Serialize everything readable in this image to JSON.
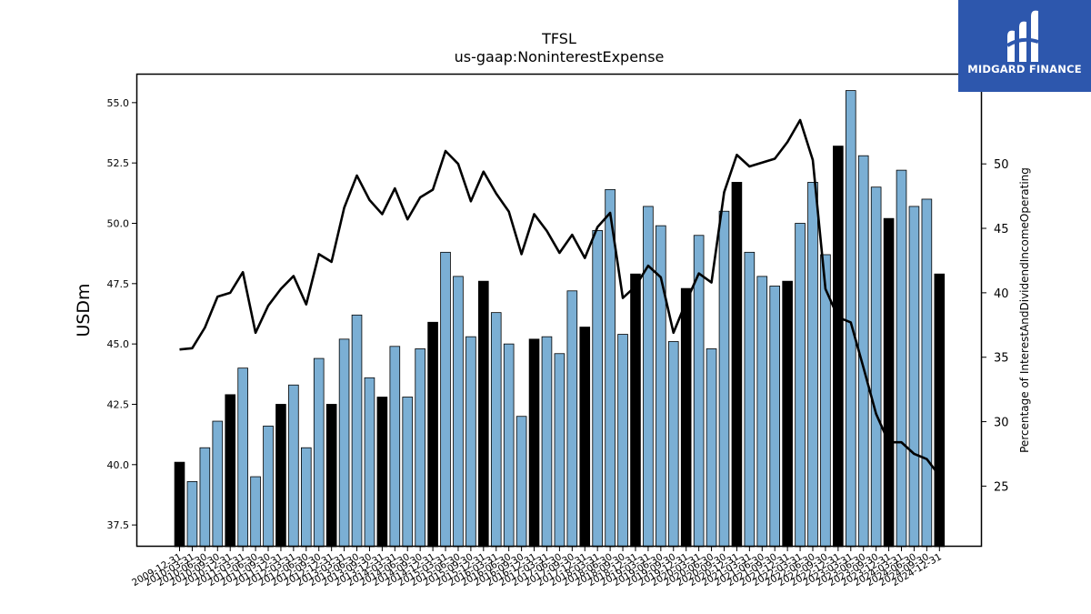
{
  "brand": {
    "name": "MIDGARD FINANCE",
    "color": "#2d57ad"
  },
  "chart_data": {
    "type": "bar",
    "title": "TFSL",
    "subtitle": "us-gaap:NoninterestExpense",
    "ylabel": "USDm",
    "y2label": "Percentage of InterestAndDividendIncomeOperating",
    "ylim": [
      36.6,
      56.2
    ],
    "y2lim": [
      20.3,
      57.0
    ],
    "yticks": [
      "37.5",
      "40.0",
      "42.5",
      "45.0",
      "47.5",
      "50.0",
      "52.5",
      "55.0"
    ],
    "y2ticks": [
      "25",
      "30",
      "35",
      "40",
      "45",
      "50"
    ],
    "grid": false,
    "colors": {
      "annual_bar": "#000000",
      "quarter_bar": "#7bafd4",
      "line": "#000000"
    },
    "categories": [
      "2009-12-31",
      "2010-03-31",
      "2010-06-30",
      "2010-09-30",
      "2010-12-31",
      "2011-03-31",
      "2011-06-30",
      "2011-09-30",
      "2011-12-31",
      "2012-03-31",
      "2012-06-30",
      "2012-09-30",
      "2012-12-31",
      "2013-03-31",
      "2013-06-30",
      "2013-09-30",
      "2013-12-31",
      "2014-03-31",
      "2014-06-30",
      "2014-09-30",
      "2014-12-31",
      "2015-03-31",
      "2015-06-30",
      "2015-09-30",
      "2015-12-31",
      "2016-03-31",
      "2016-06-30",
      "2016-09-30",
      "2016-12-31",
      "2017-03-31",
      "2017-06-30",
      "2017-09-30",
      "2017-12-31",
      "2018-03-31",
      "2018-06-30",
      "2018-09-30",
      "2018-12-31",
      "2019-03-31",
      "2019-06-30",
      "2019-09-30",
      "2019-12-31",
      "2020-03-31",
      "2020-06-30",
      "2020-09-30",
      "2020-12-31",
      "2021-03-31",
      "2021-06-30",
      "2021-09-30",
      "2021-12-31",
      "2022-03-31",
      "2022-06-30",
      "2022-09-30",
      "2022-12-31",
      "2023-03-31",
      "2023-06-30",
      "2023-09-30",
      "2023-12-31",
      "2024-03-31",
      "2024-06-30",
      "2024-09-30",
      "2024-12-31"
    ],
    "xticks_shown": [
      "2009-12-31",
      "2010-03-31",
      "2010-06-30",
      "2010-09-30",
      "2010-12-31",
      "2011-03-31",
      "2011-06-30",
      "2011-09-30",
      "2011-12-31",
      "2012-03-31",
      "2012-06-30",
      "2012-09-30",
      "2012-12-31",
      "2013-03-31",
      "2013-06-30",
      "2013-09-30",
      "2013-12-31",
      "2014-03-31",
      "2014-06-30",
      "2014-09-30",
      "2014-12-31",
      "2015-03-31",
      "2015-06-30",
      "2015-09-30",
      "2015-12-31",
      "2016-03-31",
      "2016-06-30",
      "2016-09-30",
      "2016-12-31",
      "2017-03-31",
      "2017-06-30",
      "2017-09-30",
      "2017-12-31",
      "2018-03-31",
      "2018-06-30",
      "2018-09-30",
      "2018-12-31",
      "2019-03-31",
      "2019-06-30",
      "2019-09-30",
      "2019-12-31",
      "2020-03-31",
      "2020-06-30",
      "2020-09-30",
      "2020-12-31",
      "2021-03-31",
      "2021-06-30",
      "2021-09-30",
      "2021-12-31",
      "2022-03-31",
      "2022-06-30",
      "2022-09-30",
      "2022-12-31",
      "2023-03-31",
      "2023-06-30",
      "2023-09-30",
      "2023-12-31",
      "2024-03-31",
      "2024-06-30",
      "2024-09-30",
      "2024-12-31"
    ],
    "annual_flags": [
      1,
      0,
      0,
      0,
      1,
      0,
      0,
      0,
      1,
      0,
      0,
      0,
      1,
      0,
      0,
      0,
      1,
      0,
      0,
      0,
      1,
      0,
      0,
      0,
      1,
      0,
      0,
      0,
      1,
      0,
      0,
      0,
      1,
      0,
      0,
      0,
      1,
      0,
      0,
      0,
      1,
      0,
      0,
      0,
      1,
      0,
      0,
      0,
      1,
      0,
      0,
      0,
      1,
      0,
      0,
      0,
      1,
      0,
      0,
      0,
      1
    ],
    "series": [
      {
        "values": [
          40.1,
          39.3,
          40.7,
          41.8,
          42.9,
          44.0,
          39.5,
          41.6,
          42.5,
          43.3,
          40.7,
          44.4,
          42.5,
          45.2,
          46.2,
          43.6,
          42.8,
          44.9,
          42.8,
          44.8,
          45.9,
          48.8,
          47.8,
          45.3,
          47.6,
          46.3,
          45.0,
          42.0,
          45.2,
          45.3,
          44.6,
          47.2,
          45.7,
          49.7,
          51.4,
          45.4,
          47.9,
          50.7,
          49.9,
          45.1,
          47.3,
          49.5,
          44.8,
          50.5,
          51.7,
          48.8,
          47.8,
          47.4,
          47.6,
          50.0,
          51.7,
          48.7,
          53.2,
          55.5,
          52.8,
          51.5,
          50.2,
          52.2,
          50.7,
          51.0,
          47.9
        ]
      },
      {
        "axis": "right",
        "values": [
          35.6,
          35.7,
          37.3,
          39.7,
          40.0,
          41.6,
          36.9,
          39.0,
          40.3,
          41.3,
          39.1,
          43.0,
          42.4,
          46.6,
          49.1,
          47.2,
          46.1,
          48.1,
          45.7,
          47.4,
          48.0,
          51.0,
          50.0,
          47.1,
          49.4,
          47.7,
          46.3,
          43.0,
          46.1,
          44.8,
          43.1,
          44.5,
          42.7,
          45.1,
          46.2,
          39.6,
          40.5,
          42.1,
          41.2,
          36.9,
          39.3,
          41.5,
          40.8,
          47.8,
          50.7,
          49.8,
          50.1,
          50.4,
          51.7,
          53.4,
          50.3,
          40.3,
          38.1,
          37.7,
          34.2,
          30.6,
          28.4,
          28.4,
          27.5,
          27.1,
          25.8
        ]
      }
    ]
  }
}
